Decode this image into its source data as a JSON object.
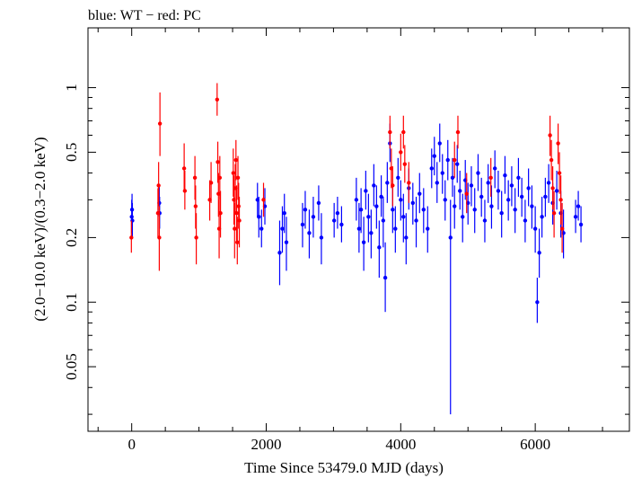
{
  "chart_data": {
    "type": "scatter",
    "title": "blue: WT − red: PC",
    "xlabel": "Time Since 53479.0 MJD (days)",
    "ylabel": "(2.0−10.0 keV)/(0.3−2.0 keV)",
    "xlim": [
      -650,
      7400
    ],
    "ylim": [
      0.025,
      1.9
    ],
    "yscale": "log",
    "x_ticks": [
      0,
      2000,
      4000,
      6000
    ],
    "y_ticks": [
      0.05,
      0.1,
      0.2,
      0.5,
      1
    ],
    "y_tick_labels": [
      "0.05",
      "0.1",
      "0.2",
      "0.5",
      "1"
    ],
    "grid": false,
    "series": [
      {
        "color": "#0000ff",
        "mode": "WT",
        "points": [
          [
            0,
            0.25,
            0.21,
            0.3
          ],
          [
            5,
            0.27,
            0.23,
            0.32
          ],
          [
            10,
            0.24,
            0.2,
            0.29
          ],
          [
            410,
            0.29,
            0.25,
            0.35
          ],
          [
            415,
            0.26,
            0.22,
            0.31
          ],
          [
            1870,
            0.3,
            0.25,
            0.36
          ],
          [
            1890,
            0.25,
            0.2,
            0.31
          ],
          [
            1930,
            0.22,
            0.18,
            0.27
          ],
          [
            1980,
            0.28,
            0.23,
            0.34
          ],
          [
            2200,
            0.17,
            0.12,
            0.24
          ],
          [
            2240,
            0.22,
            0.17,
            0.28
          ],
          [
            2270,
            0.26,
            0.21,
            0.32
          ],
          [
            2300,
            0.19,
            0.14,
            0.25
          ],
          [
            2540,
            0.23,
            0.18,
            0.29
          ],
          [
            2580,
            0.27,
            0.22,
            0.33
          ],
          [
            2640,
            0.21,
            0.16,
            0.27
          ],
          [
            2700,
            0.25,
            0.2,
            0.31
          ],
          [
            2780,
            0.29,
            0.24,
            0.35
          ],
          [
            2820,
            0.2,
            0.15,
            0.26
          ],
          [
            3010,
            0.24,
            0.2,
            0.29
          ],
          [
            3060,
            0.26,
            0.22,
            0.31
          ],
          [
            3120,
            0.23,
            0.19,
            0.28
          ],
          [
            3340,
            0.3,
            0.24,
            0.38
          ],
          [
            3380,
            0.22,
            0.17,
            0.29
          ],
          [
            3410,
            0.27,
            0.21,
            0.34
          ],
          [
            3450,
            0.19,
            0.14,
            0.25
          ],
          [
            3480,
            0.33,
            0.27,
            0.41
          ],
          [
            3520,
            0.25,
            0.19,
            0.32
          ],
          [
            3560,
            0.21,
            0.16,
            0.27
          ],
          [
            3600,
            0.35,
            0.28,
            0.44
          ],
          [
            3640,
            0.28,
            0.22,
            0.35
          ],
          [
            3680,
            0.18,
            0.13,
            0.24
          ],
          [
            3710,
            0.31,
            0.25,
            0.39
          ],
          [
            3740,
            0.24,
            0.18,
            0.31
          ],
          [
            3770,
            0.13,
            0.09,
            0.19
          ],
          [
            3800,
            0.36,
            0.29,
            0.45
          ],
          [
            3840,
            0.55,
            0.45,
            0.68
          ],
          [
            3880,
            0.27,
            0.21,
            0.34
          ],
          [
            3920,
            0.22,
            0.17,
            0.28
          ],
          [
            3960,
            0.38,
            0.31,
            0.47
          ],
          [
            4000,
            0.3,
            0.24,
            0.37
          ],
          [
            4040,
            0.25,
            0.19,
            0.32
          ],
          [
            4080,
            0.2,
            0.15,
            0.26
          ],
          [
            4120,
            0.34,
            0.27,
            0.42
          ],
          [
            4180,
            0.29,
            0.23,
            0.36
          ],
          [
            4230,
            0.24,
            0.18,
            0.31
          ],
          [
            4280,
            0.32,
            0.26,
            0.4
          ],
          [
            4340,
            0.27,
            0.21,
            0.34
          ],
          [
            4400,
            0.22,
            0.17,
            0.28
          ],
          [
            4460,
            0.42,
            0.34,
            0.52
          ],
          [
            4500,
            0.48,
            0.39,
            0.59
          ],
          [
            4540,
            0.36,
            0.29,
            0.45
          ],
          [
            4580,
            0.55,
            0.45,
            0.68
          ],
          [
            4620,
            0.4,
            0.32,
            0.49
          ],
          [
            4660,
            0.3,
            0.24,
            0.37
          ],
          [
            4700,
            0.46,
            0.37,
            0.57
          ],
          [
            4740,
            0.2,
            0.03,
            0.3
          ],
          [
            4770,
            0.38,
            0.31,
            0.47
          ],
          [
            4800,
            0.28,
            0.22,
            0.35
          ],
          [
            4840,
            0.44,
            0.36,
            0.54
          ],
          [
            4880,
            0.33,
            0.27,
            0.41
          ],
          [
            4920,
            0.25,
            0.19,
            0.32
          ],
          [
            4960,
            0.37,
            0.3,
            0.46
          ],
          [
            5000,
            0.29,
            0.23,
            0.36
          ],
          [
            5050,
            0.35,
            0.28,
            0.43
          ],
          [
            5100,
            0.27,
            0.21,
            0.34
          ],
          [
            5150,
            0.4,
            0.33,
            0.49
          ],
          [
            5200,
            0.31,
            0.25,
            0.38
          ],
          [
            5250,
            0.24,
            0.19,
            0.3
          ],
          [
            5300,
            0.36,
            0.29,
            0.44
          ],
          [
            5350,
            0.28,
            0.22,
            0.35
          ],
          [
            5400,
            0.42,
            0.34,
            0.51
          ],
          [
            5450,
            0.33,
            0.27,
            0.41
          ],
          [
            5500,
            0.26,
            0.2,
            0.33
          ],
          [
            5550,
            0.39,
            0.32,
            0.48
          ],
          [
            5600,
            0.3,
            0.24,
            0.37
          ],
          [
            5650,
            0.35,
            0.28,
            0.43
          ],
          [
            5700,
            0.27,
            0.21,
            0.34
          ],
          [
            5750,
            0.38,
            0.31,
            0.47
          ],
          [
            5800,
            0.31,
            0.25,
            0.38
          ],
          [
            5850,
            0.24,
            0.19,
            0.3
          ],
          [
            5900,
            0.34,
            0.28,
            0.42
          ],
          [
            5950,
            0.28,
            0.22,
            0.35
          ],
          [
            6000,
            0.22,
            0.17,
            0.28
          ],
          [
            6030,
            0.1,
            0.08,
            0.13
          ],
          [
            6060,
            0.17,
            0.13,
            0.22
          ],
          [
            6100,
            0.25,
            0.2,
            0.31
          ],
          [
            6150,
            0.31,
            0.25,
            0.38
          ],
          [
            6200,
            0.36,
            0.29,
            0.44
          ],
          [
            6260,
            0.29,
            0.23,
            0.36
          ],
          [
            6320,
            0.33,
            0.27,
            0.41
          ],
          [
            6380,
            0.26,
            0.2,
            0.33
          ],
          [
            6420,
            0.21,
            0.16,
            0.27
          ],
          [
            6600,
            0.25,
            0.21,
            0.3
          ],
          [
            6640,
            0.28,
            0.24,
            0.33
          ],
          [
            6680,
            0.23,
            0.19,
            0.28
          ]
        ]
      },
      {
        "color": "#ff0000",
        "mode": "PC",
        "points": [
          [
            -5,
            0.2,
            0.17,
            0.24
          ],
          [
            390,
            0.26,
            0.2,
            0.34
          ],
          [
            400,
            0.35,
            0.28,
            0.45
          ],
          [
            410,
            0.2,
            0.14,
            0.28
          ],
          [
            420,
            0.68,
            0.48,
            0.95
          ],
          [
            780,
            0.42,
            0.33,
            0.55
          ],
          [
            790,
            0.33,
            0.27,
            0.41
          ],
          [
            940,
            0.38,
            0.3,
            0.48
          ],
          [
            950,
            0.28,
            0.22,
            0.35
          ],
          [
            960,
            0.2,
            0.15,
            0.26
          ],
          [
            1160,
            0.3,
            0.24,
            0.37
          ],
          [
            1180,
            0.36,
            0.29,
            0.45
          ],
          [
            1270,
            0.88,
            0.74,
            1.05
          ],
          [
            1280,
            0.45,
            0.36,
            0.56
          ],
          [
            1290,
            0.32,
            0.25,
            0.4
          ],
          [
            1300,
            0.22,
            0.16,
            0.3
          ],
          [
            1310,
            0.38,
            0.3,
            0.48
          ],
          [
            1320,
            0.26,
            0.2,
            0.33
          ],
          [
            1510,
            0.4,
            0.31,
            0.52
          ],
          [
            1520,
            0.3,
            0.23,
            0.39
          ],
          [
            1530,
            0.22,
            0.16,
            0.29
          ],
          [
            1540,
            0.34,
            0.26,
            0.44
          ],
          [
            1550,
            0.46,
            0.37,
            0.57
          ],
          [
            1560,
            0.26,
            0.19,
            0.35
          ],
          [
            1570,
            0.19,
            0.15,
            0.25
          ],
          [
            1580,
            0.38,
            0.3,
            0.48
          ],
          [
            1590,
            0.28,
            0.22,
            0.36
          ],
          [
            1600,
            0.24,
            0.18,
            0.31
          ],
          [
            1960,
            0.3,
            0.25,
            0.36
          ],
          [
            3840,
            0.62,
            0.52,
            0.74
          ],
          [
            3860,
            0.42,
            0.34,
            0.52
          ],
          [
            3880,
            0.35,
            0.28,
            0.43
          ],
          [
            4000,
            0.5,
            0.41,
            0.61
          ],
          [
            4040,
            0.62,
            0.52,
            0.74
          ],
          [
            4060,
            0.44,
            0.36,
            0.54
          ],
          [
            4120,
            0.36,
            0.29,
            0.45
          ],
          [
            4800,
            0.46,
            0.38,
            0.56
          ],
          [
            4850,
            0.62,
            0.52,
            0.74
          ],
          [
            4980,
            0.32,
            0.26,
            0.4
          ],
          [
            5340,
            0.38,
            0.31,
            0.47
          ],
          [
            6220,
            0.6,
            0.48,
            0.74
          ],
          [
            6240,
            0.46,
            0.37,
            0.57
          ],
          [
            6260,
            0.34,
            0.27,
            0.43
          ],
          [
            6280,
            0.26,
            0.2,
            0.33
          ],
          [
            6340,
            0.55,
            0.44,
            0.68
          ],
          [
            6360,
            0.4,
            0.32,
            0.5
          ],
          [
            6380,
            0.3,
            0.23,
            0.39
          ],
          [
            6400,
            0.22,
            0.17,
            0.29
          ]
        ]
      }
    ]
  }
}
